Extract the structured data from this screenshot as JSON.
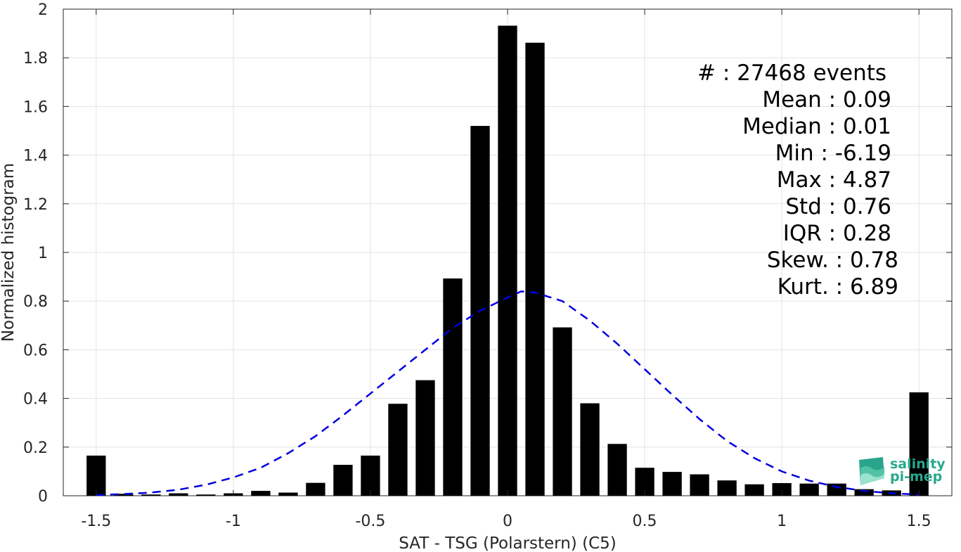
{
  "chart_data": {
    "type": "bar",
    "xlabel": "SAT - TSG (Polarstern) (C5)",
    "ylabel": "Normalized histogram",
    "xlim": [
      -1.62,
      1.62
    ],
    "ylim": [
      0,
      2
    ],
    "grid": true,
    "xticks": [
      -1.5,
      -1,
      -0.5,
      0,
      0.5,
      1,
      1.5
    ],
    "xtick_labels": [
      "-1.5",
      "-1",
      "-0.5",
      "0",
      "0.5",
      "1",
      "1.5"
    ],
    "yticks": [
      0,
      0.2,
      0.4,
      0.6,
      0.8,
      1,
      1.2,
      1.4,
      1.6,
      1.8,
      2
    ],
    "ytick_labels": [
      "0",
      "0.2",
      "0.4",
      "0.6",
      "0.8",
      "1",
      "1.2",
      "1.4",
      "1.6",
      "1.8",
      "2"
    ],
    "bar_width": 0.07,
    "bar_color": "#000000",
    "x": [
      -1.5,
      -1.4,
      -1.3,
      -1.2,
      -1.1,
      -1.0,
      -0.9,
      -0.8,
      -0.7,
      -0.6,
      -0.5,
      -0.4,
      -0.3,
      -0.2,
      -0.1,
      0.0,
      0.1,
      0.2,
      0.3,
      0.4,
      0.5,
      0.6,
      0.7,
      0.8,
      0.9,
      1.0,
      1.1,
      1.2,
      1.3,
      1.4,
      1.5
    ],
    "values": [
      0.165,
      0.008,
      0.005,
      0.01,
      0.005,
      0.01,
      0.02,
      0.013,
      0.053,
      0.127,
      0.165,
      0.378,
      0.475,
      0.893,
      1.52,
      1.932,
      1.862,
      0.692,
      0.38,
      0.213,
      0.115,
      0.098,
      0.088,
      0.063,
      0.047,
      0.052,
      0.05,
      0.05,
      0.027,
      0.022,
      0.425
    ],
    "fit_curve": {
      "style": "dashed",
      "color": "#0000dd",
      "x": [
        -1.5,
        -1.4,
        -1.3,
        -1.2,
        -1.1,
        -1.0,
        -0.9,
        -0.8,
        -0.7,
        -0.6,
        -0.5,
        -0.4,
        -0.3,
        -0.2,
        -0.1,
        0.0,
        0.05,
        0.1,
        0.2,
        0.3,
        0.4,
        0.5,
        0.6,
        0.7,
        0.8,
        0.9,
        1.0,
        1.1,
        1.2,
        1.3,
        1.4,
        1.5
      ],
      "y": [
        0.003,
        0.007,
        0.013,
        0.025,
        0.045,
        0.075,
        0.115,
        0.175,
        0.245,
        0.33,
        0.42,
        0.51,
        0.6,
        0.69,
        0.76,
        0.815,
        0.84,
        0.835,
        0.8,
        0.72,
        0.625,
        0.52,
        0.415,
        0.315,
        0.225,
        0.155,
        0.1,
        0.062,
        0.036,
        0.02,
        0.01,
        0.005
      ]
    }
  },
  "stats": {
    "count": "#  : 27468 events",
    "mean": "Mean : 0.09",
    "median": "Median : 0.01",
    "min": "Min : -6.19",
    "max": "Max : 4.87",
    "std": "Std : 0.76",
    "iqr": "IQR : 0.28",
    "skew": "Skew. : 0.78",
    "kurt": "Kurt. : 6.89"
  },
  "logo": {
    "line1": "salinity",
    "line2": "pi-mep",
    "color": "#27a88d"
  }
}
